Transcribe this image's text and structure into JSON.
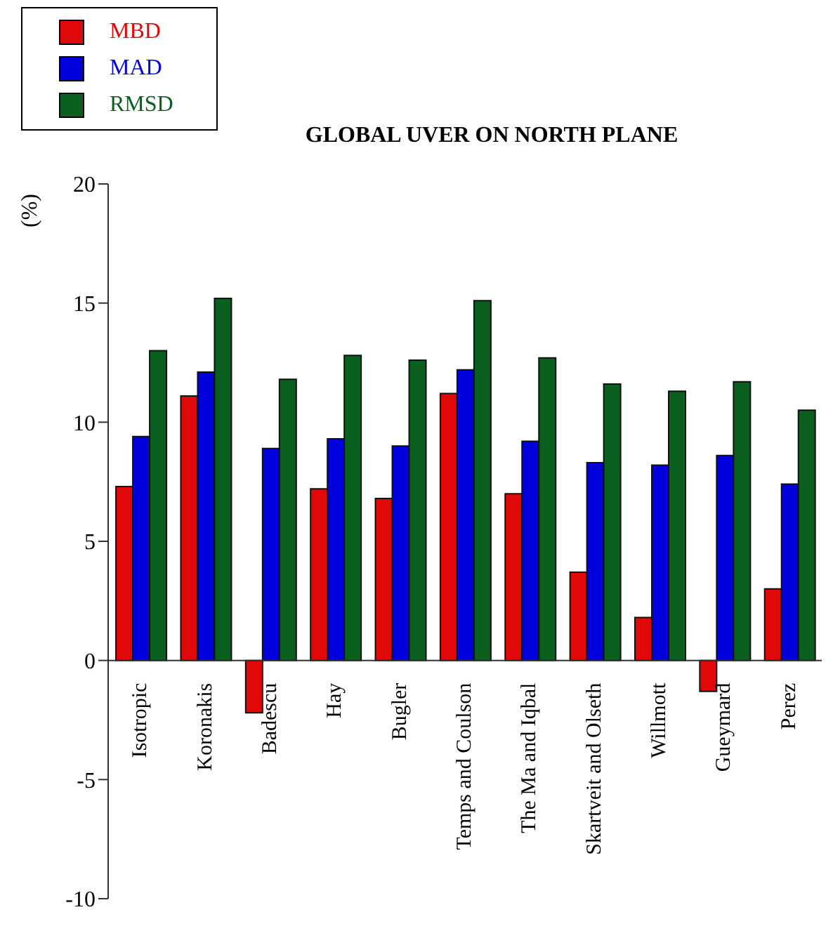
{
  "chart_data": {
    "type": "bar",
    "title": "GLOBAL UVER ON NORTH PLANE",
    "ylabel": "(%)",
    "categories": [
      "Isotropic",
      "Koronakis",
      "Badescu",
      "Hay",
      "Bugler",
      "Temps and Coulson",
      "The Ma and Iqbal",
      "Skartveit and Olseth",
      "Willmott",
      "Gueymard",
      "Perez"
    ],
    "series": [
      {
        "name": "MBD",
        "color": "#e00808",
        "values": [
          7.3,
          11.1,
          -2.2,
          7.2,
          6.8,
          11.2,
          7.0,
          3.7,
          1.8,
          -1.3,
          3.0
        ]
      },
      {
        "name": "MAD",
        "color": "#0000dd",
        "values": [
          9.4,
          12.1,
          8.9,
          9.3,
          9.0,
          12.2,
          9.2,
          8.3,
          8.2,
          8.6,
          7.4
        ]
      },
      {
        "name": "RMSD",
        "color": "#0a5f1e",
        "values": [
          13.0,
          15.2,
          11.8,
          12.8,
          12.6,
          15.1,
          12.7,
          11.6,
          11.3,
          11.7,
          10.5
        ]
      }
    ],
    "ylim": [
      -10,
      20
    ],
    "yticks": [
      -10,
      -5,
      0,
      5,
      10,
      15,
      20
    ],
    "grid": false,
    "legend": "top left"
  }
}
